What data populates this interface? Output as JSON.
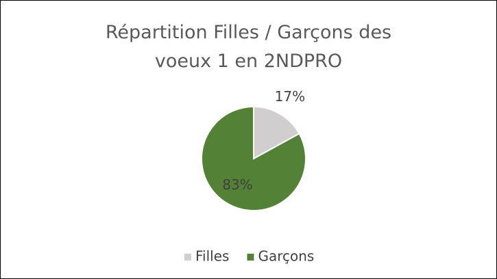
{
  "chart_data": {
    "type": "pie",
    "title": "Répartition Filles / Garçons des voeux 1 en 2NDPRO",
    "categories": [
      "Filles",
      "Garçons"
    ],
    "values": [
      17,
      83
    ],
    "value_labels": [
      "17%",
      "83%"
    ],
    "colors": [
      "#d0cece",
      "#538135"
    ],
    "legend": "bottom"
  }
}
